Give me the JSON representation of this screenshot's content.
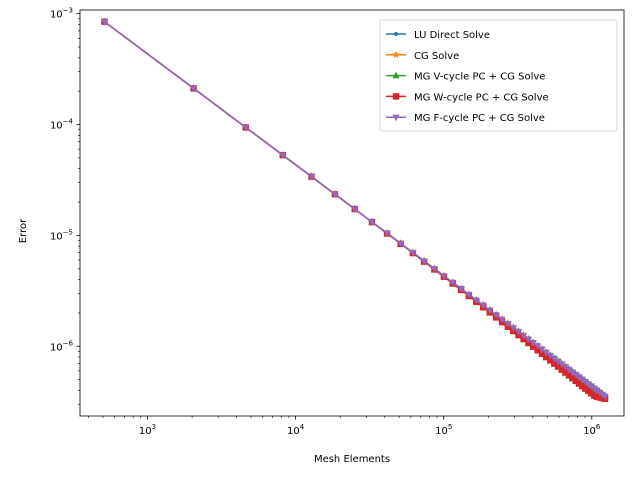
{
  "chart_data": {
    "type": "line",
    "title": "",
    "xlabel": "Mesh Elements",
    "ylabel": "Error",
    "xscale": "log",
    "yscale": "log",
    "xlim": [
      350,
      1650000
    ],
    "ylim": [
      2.35e-07,
      0.00108
    ],
    "grid": false,
    "legend_position": "upper right",
    "x_ticks": [
      {
        "value": 1000,
        "base": "10",
        "exp": "3"
      },
      {
        "value": 10000,
        "base": "10",
        "exp": "4"
      },
      {
        "value": 100000,
        "base": "10",
        "exp": "5"
      },
      {
        "value": 1000000,
        "base": "10",
        "exp": "6"
      }
    ],
    "y_ticks": [
      {
        "value": 1e-06,
        "base": "10",
        "exp": "−6"
      },
      {
        "value": 1e-05,
        "base": "10",
        "exp": "−5"
      },
      {
        "value": 0.0001,
        "base": "10",
        "exp": "−4"
      },
      {
        "value": 0.001,
        "base": "10",
        "exp": "−3"
      }
    ],
    "x": [
      512,
      2048,
      4608,
      8192,
      12800,
      18432,
      25088,
      32768,
      41472,
      51200,
      61952,
      73728,
      86528,
      100352,
      115200,
      131072,
      147968,
      165888,
      184832,
      204800,
      225792,
      247808,
      270848,
      294912,
      320000,
      346112,
      373248,
      401408,
      430592,
      460800,
      492032,
      524288,
      557568,
      591872,
      627200,
      663552,
      700928,
      739328,
      778752,
      819200,
      860672,
      903168,
      946688,
      991232,
      1036800,
      1083392,
      1131008,
      1179648,
      1229312
    ],
    "series": [
      {
        "name": "LU Direct Solve",
        "color": "#1f77b4",
        "marker": "point",
        "y": [
          0.000847,
          0.000212,
          9.42e-05,
          5.3e-05,
          3.39e-05,
          2.35e-05,
          1.73e-05,
          1.32e-05,
          1.05e-05,
          8.47e-06,
          7e-06,
          5.88e-06,
          5.01e-06,
          4.32e-06,
          3.77e-06,
          3.31e-06,
          2.93e-06,
          2.61e-06,
          2.35e-06,
          2.12e-06,
          1.92e-06,
          1.75e-06,
          1.6e-06,
          1.47e-06,
          1.36e-06,
          1.25e-06,
          1.16e-06,
          1.08e-06,
          1.01e-06,
          9.42e-07,
          8.81e-07,
          8.27e-07,
          7.78e-07,
          7.33e-07,
          6.92e-07,
          6.54e-07,
          6.19e-07,
          5.87e-07,
          5.57e-07,
          5.3e-07,
          5.04e-07,
          4.8e-07,
          4.58e-07,
          4.38e-07,
          4.18e-07,
          4.01e-07,
          3.84e-07,
          3.68e-07,
          3.53e-07
        ]
      },
      {
        "name": "CG Solve",
        "color": "#ff7f0e",
        "marker": "star",
        "y": [
          0.000847,
          0.000212,
          9.42e-05,
          5.3e-05,
          3.39e-05,
          2.35e-05,
          1.73e-05,
          1.32e-05,
          1.05e-05,
          8.47e-06,
          7e-06,
          5.88e-06,
          5.01e-06,
          4.32e-06,
          3.77e-06,
          3.31e-06,
          2.93e-06,
          2.61e-06,
          2.35e-06,
          2.12e-06,
          1.92e-06,
          1.75e-06,
          1.6e-06,
          1.47e-06,
          1.36e-06,
          1.25e-06,
          1.16e-06,
          1.08e-06,
          1.01e-06,
          9.42e-07,
          8.81e-07,
          8.27e-07,
          7.78e-07,
          7.33e-07,
          6.92e-07,
          6.54e-07,
          6.19e-07,
          5.87e-07,
          5.57e-07,
          5.3e-07,
          5.04e-07,
          4.8e-07,
          4.58e-07,
          4.38e-07,
          4.18e-07,
          4.01e-07,
          3.84e-07,
          3.68e-07,
          3.53e-07
        ]
      },
      {
        "name": "MG V-cycle PC + CG Solve",
        "color": "#2ca02c",
        "marker": "triangle-up",
        "y": [
          0.000847,
          0.000212,
          9.42e-05,
          5.3e-05,
          3.39e-05,
          2.35e-05,
          1.73e-05,
          1.32e-05,
          1.05e-05,
          8.47e-06,
          7e-06,
          5.88e-06,
          5.01e-06,
          4.32e-06,
          3.77e-06,
          3.31e-06,
          2.93e-06,
          2.61e-06,
          2.35e-06,
          2.12e-06,
          1.92e-06,
          1.75e-06,
          1.6e-06,
          1.47e-06,
          1.36e-06,
          1.25e-06,
          1.16e-06,
          1.08e-06,
          1.01e-06,
          9.42e-07,
          8.81e-07,
          8.27e-07,
          7.78e-07,
          7.33e-07,
          6.92e-07,
          6.54e-07,
          6.19e-07,
          5.87e-07,
          5.57e-07,
          5.3e-07,
          5.04e-07,
          4.8e-07,
          4.58e-07,
          4.38e-07,
          4.18e-07,
          4.01e-07,
          3.84e-07,
          3.68e-07,
          3.53e-07
        ]
      },
      {
        "name": "MG W-cycle PC + CG Solve",
        "color": "#d62728",
        "marker": "square",
        "y": [
          0.000847,
          0.000212,
          9.42e-05,
          5.3e-05,
          3.39e-05,
          2.35e-05,
          1.73e-05,
          1.32e-05,
          1.04e-05,
          8.4e-06,
          6.93e-06,
          5.8e-06,
          4.93e-06,
          4.24e-06,
          3.68e-06,
          3.22e-06,
          2.84e-06,
          2.52e-06,
          2.25e-06,
          2.02e-06,
          1.82e-06,
          1.65e-06,
          1.5e-06,
          1.37e-06,
          1.26e-06,
          1.16e-06,
          1.07e-06,
          9.9e-07,
          9.2e-07,
          8.55e-07,
          7.98e-07,
          7.45e-07,
          6.98e-07,
          6.55e-07,
          6.15e-07,
          5.79e-07,
          5.46e-07,
          5.15e-07,
          4.87e-07,
          4.61e-07,
          4.37e-07,
          4.15e-07,
          3.95e-07,
          3.76e-07,
          3.59e-07,
          3.5e-07,
          3.45e-07,
          3.4e-07,
          3.36e-07
        ]
      },
      {
        "name": "MG F-cycle PC + CG Solve",
        "color": "#9467bd",
        "marker": "triangle-down",
        "y": [
          0.000847,
          0.000212,
          9.42e-05,
          5.3e-05,
          3.39e-05,
          2.35e-05,
          1.73e-05,
          1.32e-05,
          1.05e-05,
          8.47e-06,
          7e-06,
          5.88e-06,
          5.01e-06,
          4.32e-06,
          3.77e-06,
          3.31e-06,
          2.93e-06,
          2.61e-06,
          2.35e-06,
          2.12e-06,
          1.92e-06,
          1.75e-06,
          1.6e-06,
          1.47e-06,
          1.36e-06,
          1.25e-06,
          1.16e-06,
          1.08e-06,
          1.01e-06,
          9.42e-07,
          8.81e-07,
          8.27e-07,
          7.78e-07,
          7.33e-07,
          6.92e-07,
          6.54e-07,
          6.19e-07,
          5.87e-07,
          5.57e-07,
          5.3e-07,
          5.04e-07,
          4.8e-07,
          4.58e-07,
          4.38e-07,
          4.18e-07,
          4.01e-07,
          3.84e-07,
          3.68e-07,
          3.53e-07
        ]
      }
    ]
  }
}
